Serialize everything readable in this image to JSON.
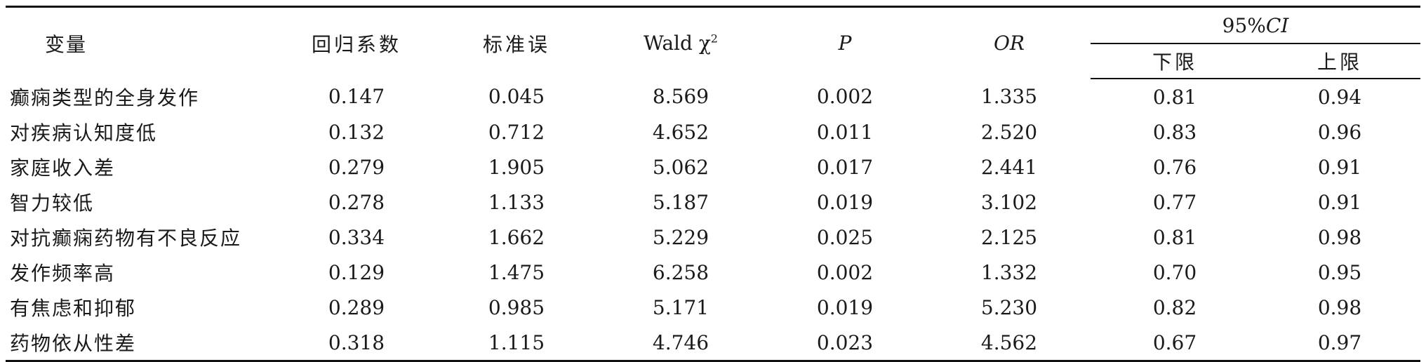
{
  "table": {
    "headers": {
      "variable": "变量",
      "coef": "回归系数",
      "se": "标准误",
      "wald": "Wald χ",
      "wald_sup": "2",
      "p": "P",
      "or": "OR",
      "ci_prefix": "95%",
      "ci_suffix": "CI",
      "lower": "下限",
      "upper": "上限"
    },
    "rows": [
      {
        "variable": "癫痫类型的全身发作",
        "coef": "0.147",
        "se": "0.045",
        "wald": "8.569",
        "p": "0.002",
        "or": "1.335",
        "lower": "0.81",
        "upper": "0.94"
      },
      {
        "variable": "对疾病认知度低",
        "coef": "0.132",
        "se": "0.712",
        "wald": "4.652",
        "p": "0.011",
        "or": "2.520",
        "lower": "0.83",
        "upper": "0.96"
      },
      {
        "variable": "家庭收入差",
        "coef": "0.279",
        "se": "1.905",
        "wald": "5.062",
        "p": "0.017",
        "or": "2.441",
        "lower": "0.76",
        "upper": "0.91"
      },
      {
        "variable": "智力较低",
        "coef": "0.278",
        "se": "1.133",
        "wald": "5.187",
        "p": "0.019",
        "or": "3.102",
        "lower": "0.77",
        "upper": "0.91"
      },
      {
        "variable": "对抗癫痫药物有不良反应",
        "coef": "0.334",
        "se": "1.662",
        "wald": "5.229",
        "p": "0.025",
        "or": "2.125",
        "lower": "0.81",
        "upper": "0.98"
      },
      {
        "variable": "发作频率高",
        "coef": "0.129",
        "se": "1.475",
        "wald": "6.258",
        "p": "0.002",
        "or": "1.332",
        "lower": "0.70",
        "upper": "0.95"
      },
      {
        "variable": "有焦虑和抑郁",
        "coef": "0.289",
        "se": "0.985",
        "wald": "5.171",
        "p": "0.019",
        "or": "5.230",
        "lower": "0.82",
        "upper": "0.98"
      },
      {
        "variable": "药物依从性差",
        "coef": "0.318",
        "se": "1.115",
        "wald": "4.746",
        "p": "0.023",
        "or": "4.562",
        "lower": "0.67",
        "upper": "0.97"
      }
    ]
  }
}
